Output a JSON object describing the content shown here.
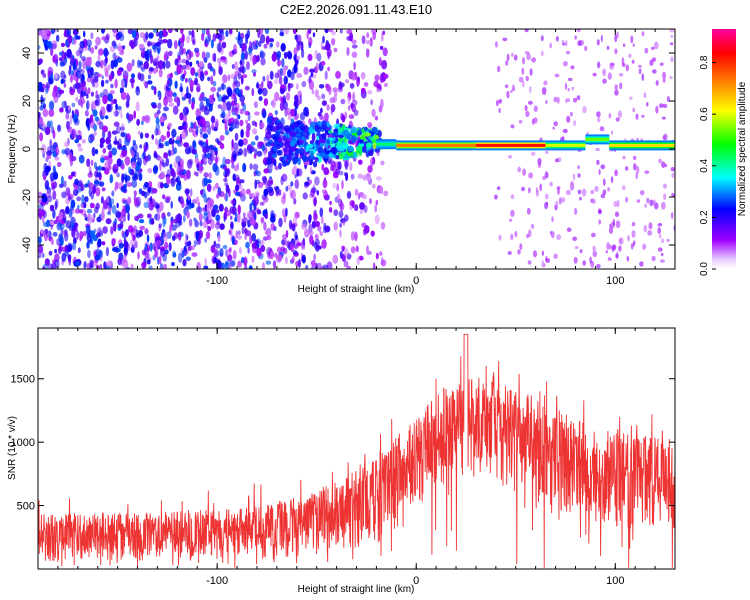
{
  "title": "C2E2.2026.091.11.43.E10",
  "chart_data": [
    {
      "type": "heatmap",
      "name": "spectrogram",
      "xlabel": "Height of straight line (km)",
      "ylabel": "Frequency (Hz)",
      "xlim": [
        -190,
        130
      ],
      "ylim": [
        -50,
        50
      ],
      "xticks": [
        -100,
        0,
        100
      ],
      "yticks": [
        -40,
        -20,
        0,
        20,
        40
      ],
      "colorbar": {
        "label": "Normalized spectral amplitude",
        "range": [
          0,
          0.93
        ],
        "ticks": [
          0.0,
          0.2,
          0.4,
          0.6,
          0.8
        ],
        "colormap": [
          "#ffffff",
          "#a000ff",
          "#0000ff",
          "#00ffff",
          "#00ff00",
          "#ffff00",
          "#ff8000",
          "#ff0000",
          "#ff00a0"
        ]
      },
      "features": {
        "noise_region_x": [
          -190,
          -15
        ],
        "noise_amplitude": [
          0.05,
          0.3
        ],
        "line_segments": [
          {
            "x": [
              -20,
              -10
            ],
            "freq": 2,
            "amplitude": 0.45
          },
          {
            "x": [
              -10,
              30
            ],
            "freq": 1.5,
            "amplitude": 0.75
          },
          {
            "x": [
              30,
              65
            ],
            "freq": 1.5,
            "amplitude": 0.85
          },
          {
            "x": [
              65,
              85
            ],
            "freq": 1.5,
            "amplitude": 0.6
          },
          {
            "x": [
              85,
              97
            ],
            "freq": 4,
            "amplitude": 0.55
          },
          {
            "x": [
              97,
              130
            ],
            "freq": 1.5,
            "amplitude": 0.65
          }
        ],
        "transition_cluster_x": [
          -75,
          -18
        ]
      }
    },
    {
      "type": "line",
      "name": "snr",
      "xlabel": "Height of straight line (km)",
      "ylabel": "SNR (10 * v/v)",
      "xlim": [
        -190,
        130
      ],
      "ylim": [
        0,
        1900
      ],
      "xticks": [
        -100,
        0,
        100
      ],
      "yticks": [
        500,
        1000,
        1500
      ],
      "color": "#ee3333",
      "envelope": [
        {
          "x": -190,
          "low": 50,
          "high": 430
        },
        {
          "x": -150,
          "low": 60,
          "high": 450
        },
        {
          "x": -100,
          "low": 70,
          "high": 470
        },
        {
          "x": -70,
          "low": 90,
          "high": 520
        },
        {
          "x": -50,
          "low": 110,
          "high": 620
        },
        {
          "x": -30,
          "low": 140,
          "high": 780
        },
        {
          "x": -20,
          "low": 180,
          "high": 900
        },
        {
          "x": -10,
          "low": 300,
          "high": 1050
        },
        {
          "x": 0,
          "low": 500,
          "high": 1200
        },
        {
          "x": 15,
          "low": 650,
          "high": 1450
        },
        {
          "x": 30,
          "low": 700,
          "high": 1550
        },
        {
          "x": 45,
          "low": 620,
          "high": 1480
        },
        {
          "x": 60,
          "low": 520,
          "high": 1350
        },
        {
          "x": 80,
          "low": 420,
          "high": 1180
        },
        {
          "x": 100,
          "low": 330,
          "high": 1080
        },
        {
          "x": 115,
          "low": 300,
          "high": 1050
        },
        {
          "x": 130,
          "low": 290,
          "high": 1020
        }
      ],
      "peak": {
        "x": 25,
        "value": 1850
      }
    }
  ]
}
